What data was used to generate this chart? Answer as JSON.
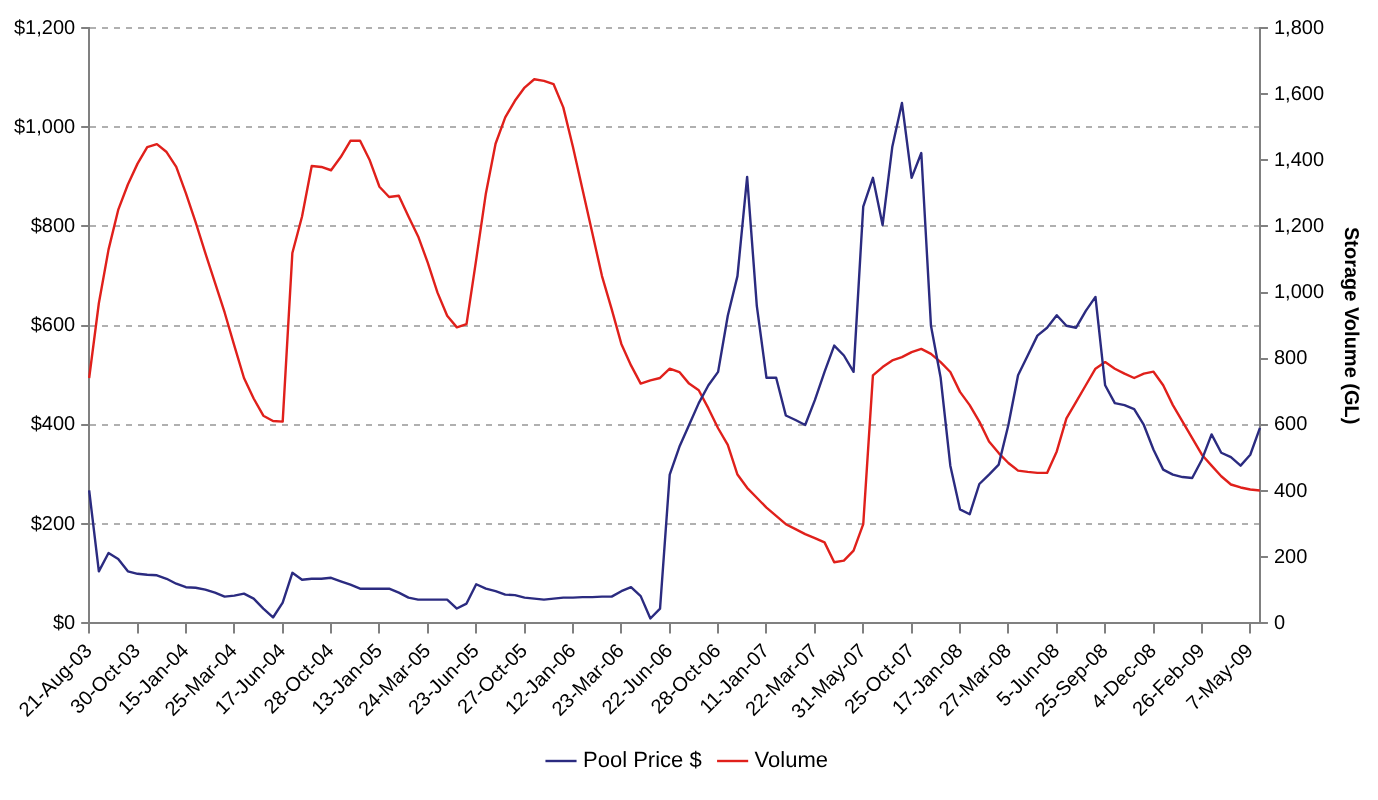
{
  "chart_data": {
    "type": "line",
    "y2label": "Storage Volume (GL)",
    "categories": [
      "21-Aug-03",
      null,
      null,
      null,
      null,
      "30-Oct-03",
      null,
      null,
      null,
      null,
      "15-Jan-04",
      null,
      null,
      null,
      null,
      "25-Mar-04",
      null,
      null,
      null,
      null,
      "17-Jun-04",
      null,
      null,
      null,
      null,
      "28-Oct-04",
      null,
      null,
      null,
      null,
      "13-Jan-05",
      null,
      null,
      null,
      null,
      "24-Mar-05",
      null,
      null,
      null,
      null,
      "23-Jun-05",
      null,
      null,
      null,
      null,
      "27-Oct-05",
      null,
      null,
      null,
      null,
      "12-Jan-06",
      null,
      null,
      null,
      null,
      "23-Mar-06",
      null,
      null,
      null,
      null,
      "22-Jun-06",
      null,
      null,
      null,
      null,
      "28-Oct-06",
      null,
      null,
      null,
      null,
      "11-Jan-07",
      null,
      null,
      null,
      null,
      "22-Mar-07",
      null,
      null,
      null,
      null,
      "31-May-07",
      null,
      null,
      null,
      null,
      "25-Oct-07",
      null,
      null,
      null,
      null,
      "17-Jan-08",
      null,
      null,
      null,
      null,
      "27-Mar-08",
      null,
      null,
      null,
      null,
      "5-Jun-08",
      null,
      null,
      null,
      null,
      "25-Sep-08",
      null,
      null,
      null,
      null,
      "4-Dec-08",
      null,
      null,
      null,
      null,
      "26-Feb-09",
      null,
      null,
      null,
      null,
      "7-May-09",
      null
    ],
    "series": [
      {
        "name": "Pool Price $",
        "color": "#2b2b80",
        "values": [
          268,
          105,
          142,
          130,
          105,
          100,
          98,
          97,
          90,
          80,
          73,
          72,
          68,
          62,
          54,
          56,
          60,
          50,
          30,
          12,
          42,
          102,
          88,
          90,
          90,
          92,
          85,
          78,
          70,
          70,
          70,
          70,
          62,
          52,
          48,
          48,
          48,
          48,
          30,
          40,
          79,
          70,
          65,
          58,
          57,
          52,
          50,
          48,
          50,
          52,
          52,
          53,
          53,
          54,
          54,
          65,
          73,
          55,
          10,
          30,
          300,
          356,
          400,
          444,
          480,
          507,
          620,
          700,
          900,
          640,
          495,
          495,
          419,
          410,
          400,
          450,
          507,
          560,
          540,
          507,
          840,
          898,
          803,
          960,
          1049,
          898,
          948,
          600,
          495,
          318,
          230,
          220,
          281,
          300,
          320,
          400,
          500,
          540,
          580,
          596,
          621,
          600,
          596,
          630,
          658,
          480,
          444,
          440,
          432,
          400,
          350,
          310,
          300,
          295,
          293,
          330,
          381,
          344,
          335,
          318,
          340,
          394
        ]
      },
      {
        "name": "Volume",
        "color": "#e0201b",
        "axis": "y2",
        "values": [
          742,
          968,
          1130,
          1250,
          1327,
          1390,
          1440,
          1449,
          1425,
          1380,
          1300,
          1213,
          1120,
          1030,
          940,
          840,
          742,
          680,
          628,
          612,
          610,
          1120,
          1230,
          1383,
          1380,
          1370,
          1410,
          1459,
          1459,
          1400,
          1320,
          1289,
          1293,
          1230,
          1170,
          1090,
          1000,
          930,
          895,
          905,
          1100,
          1300,
          1450,
          1530,
          1580,
          1620,
          1645,
          1640,
          1630,
          1560,
          1440,
          1310,
          1180,
          1050,
          950,
          845,
          780,
          725,
          735,
          742,
          770,
          760,
          725,
          705,
          650,
          590,
          540,
          450,
          410,
          380,
          350,
          325,
          300,
          285,
          270,
          258,
          245,
          185,
          190,
          220,
          300,
          750,
          775,
          795,
          805,
          820,
          830,
          815,
          790,
          760,
          700,
          660,
          610,
          550,
          515,
          485,
          462,
          458,
          455,
          455,
          520,
          620,
          670,
          720,
          770,
          790,
          770,
          755,
          742,
          755,
          761,
          720,
          660,
          610,
          560,
          510,
          477,
          445,
          420,
          411,
          405,
          402
        ]
      }
    ],
    "ylim": [
      0,
      1200
    ],
    "yticks": [
      {
        "value": 0,
        "label": "$0"
      },
      {
        "value": 200,
        "label": "$200"
      },
      {
        "value": 400,
        "label": "$400"
      },
      {
        "value": 600,
        "label": "$600"
      },
      {
        "value": 800,
        "label": "$800"
      },
      {
        "value": 1000,
        "label": "$1,000"
      },
      {
        "value": 1200,
        "label": "$1,200"
      }
    ],
    "y2lim": [
      0,
      1800
    ],
    "y2ticks": [
      0,
      200,
      400,
      600,
      800,
      {
        "value": 1000,
        "label": "1,000"
      },
      {
        "value": 1200,
        "label": "1,200"
      },
      {
        "value": 1400,
        "label": "1,400"
      },
      {
        "value": 1600,
        "label": "1,600"
      },
      {
        "value": 1800,
        "label": "1,800"
      }
    ],
    "grid": "y",
    "legend": "bottom",
    "marker": "none",
    "line_style": "solid"
  }
}
